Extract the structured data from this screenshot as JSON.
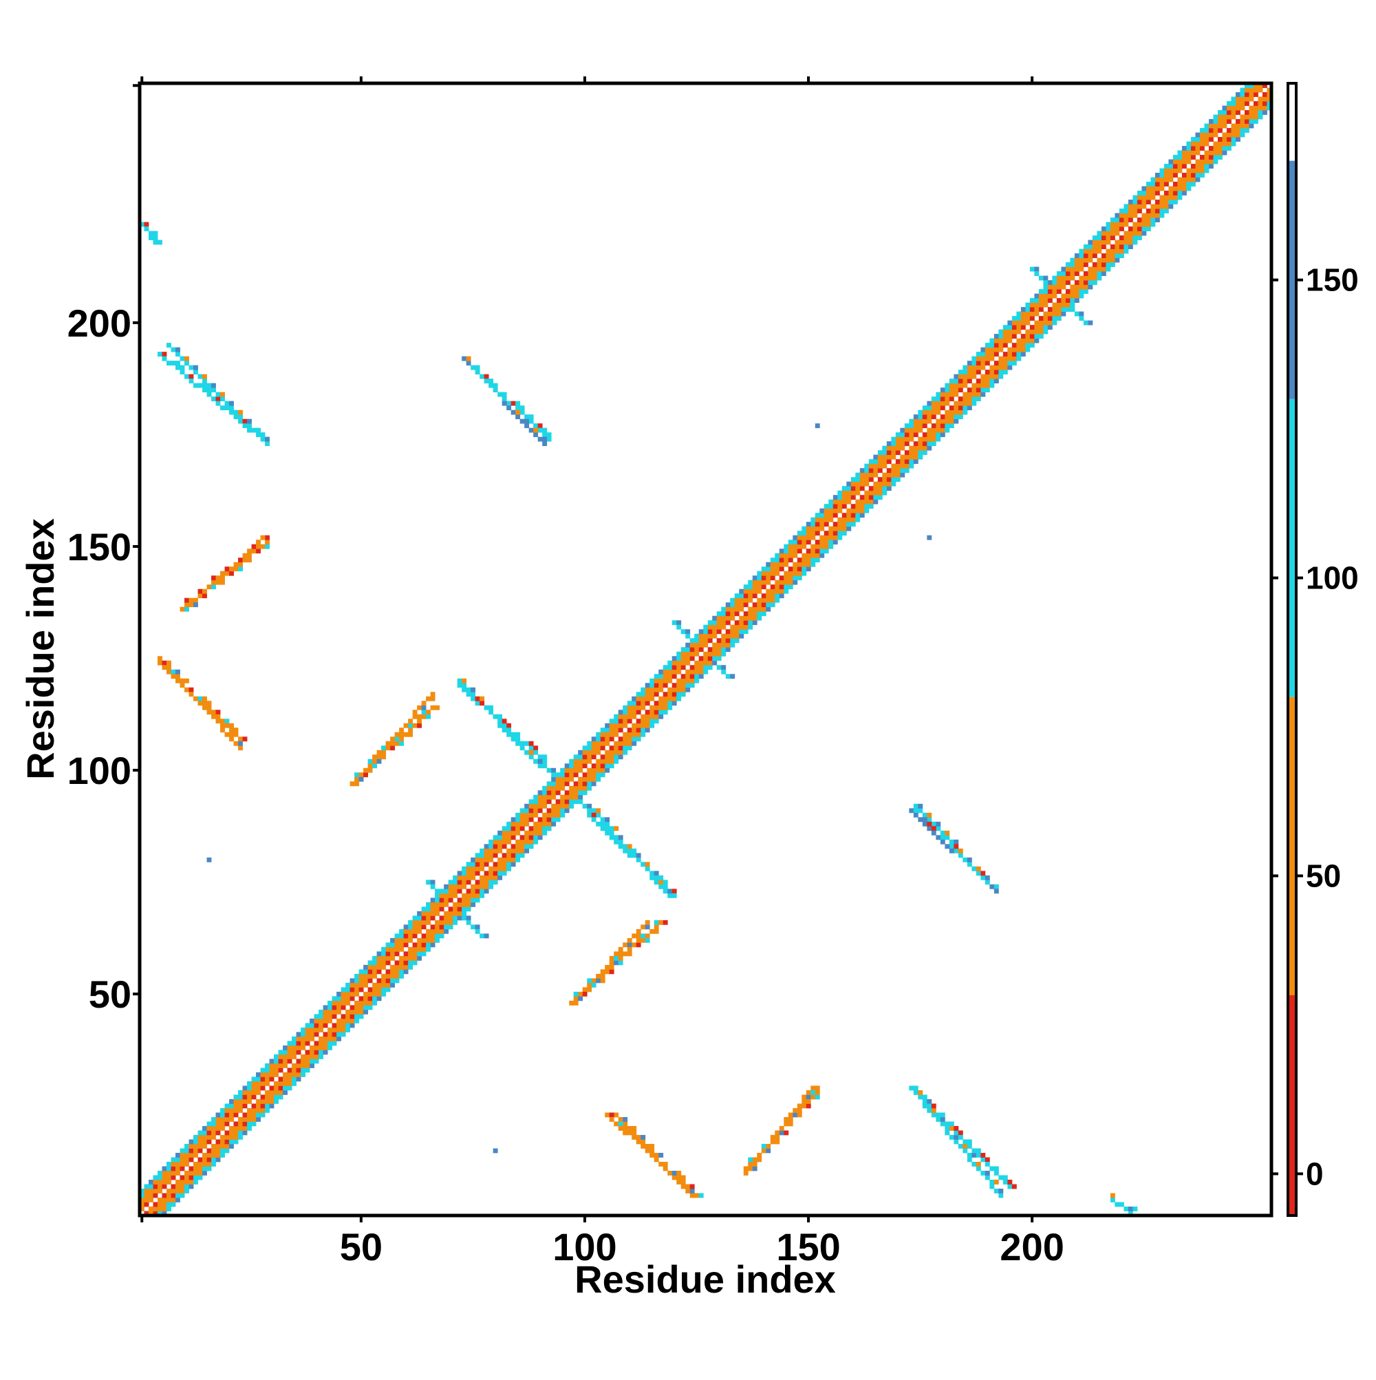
{
  "chart_data": {
    "type": "heatmap",
    "title": "",
    "xlabel": "Residue index",
    "ylabel": "Residue index",
    "xlim": [
      1,
      253
    ],
    "ylim": [
      1,
      253
    ],
    "x_ticks": [
      50,
      100,
      150,
      200
    ],
    "y_ticks": [
      50,
      100,
      150,
      200
    ],
    "grid": false,
    "colorbar": {
      "range": [
        -7,
        183
      ],
      "ticks": [
        0,
        50,
        100,
        150
      ],
      "bands": [
        {
          "from": -7,
          "to": 30,
          "color": "#e0261b"
        },
        {
          "from": 30,
          "to": 80,
          "color": "#f28c0f"
        },
        {
          "from": 80,
          "to": 130,
          "color": "#1ed6e6"
        },
        {
          "from": 130,
          "to": 170,
          "color": "#4a87c4"
        },
        {
          "from": 170,
          "to": 183,
          "color": "#ffffff"
        }
      ]
    },
    "diagonal_band": {
      "from": 1,
      "to": 253,
      "half_width": 5
    },
    "contact_segments": [
      {
        "x1": 5,
        "y1": 193,
        "x2": 28,
        "y2": 174,
        "value": 95
      },
      {
        "x1": 75,
        "y1": 190,
        "x2": 92,
        "y2": 174,
        "value": 120
      },
      {
        "x1": 10,
        "y1": 136,
        "x2": 29,
        "y2": 151,
        "value": 45
      },
      {
        "x1": 5,
        "y1": 124,
        "x2": 23,
        "y2": 107,
        "value": 75
      },
      {
        "x1": 48,
        "y1": 97,
        "x2": 66,
        "y2": 114,
        "value": 40
      },
      {
        "x1": 72,
        "y1": 119,
        "x2": 91,
        "y2": 102,
        "value": 110
      },
      {
        "x1": 101,
        "y1": 90,
        "x2": 120,
        "y2": 72,
        "value": 105
      },
      {
        "x1": 97,
        "y1": 48,
        "x2": 117,
        "y2": 66,
        "value": 45
      },
      {
        "x1": 173,
        "y1": 91,
        "x2": 192,
        "y2": 73,
        "value": 130
      },
      {
        "x1": 105,
        "y1": 23,
        "x2": 125,
        "y2": 5,
        "value": 70
      },
      {
        "x1": 136,
        "y1": 11,
        "x2": 152,
        "y2": 28,
        "value": 40
      },
      {
        "x1": 173,
        "y1": 29,
        "x2": 195,
        "y2": 7,
        "value": 90
      },
      {
        "x1": 1,
        "y1": 222,
        "x2": 4,
        "y2": 218,
        "value": 110
      }
    ],
    "crossings": [
      {
        "x": 71,
        "y": 69,
        "value": 100
      },
      {
        "x": 96,
        "y": 96,
        "value": 100
      },
      {
        "x": 126,
        "y": 127,
        "value": 100
      },
      {
        "x": 206,
        "y": 206,
        "value": 110
      }
    ],
    "isolated_points": [
      {
        "x": 16,
        "y": 80,
        "value": 150
      },
      {
        "x": 80,
        "y": 15,
        "value": 150
      },
      {
        "x": 152,
        "y": 177,
        "value": 150
      },
      {
        "x": 177,
        "y": 152,
        "value": 150
      },
      {
        "x": 218,
        "y": 5,
        "value": 60
      },
      {
        "x": 223,
        "y": 2,
        "value": 100
      }
    ]
  }
}
